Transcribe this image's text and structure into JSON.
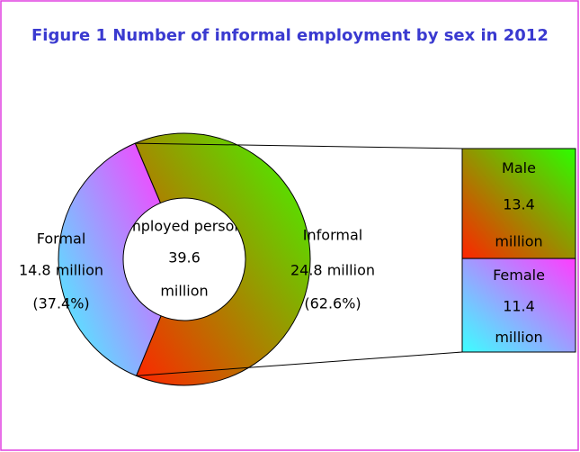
{
  "chart_data": {
    "type": "donut",
    "title": "Figure 1 Number of  informal employment by sex in 2012",
    "center_label": "Employed persons",
    "total": 39.6,
    "total_unit": "million",
    "categories": [
      "Formal",
      "Informal"
    ],
    "values": [
      14.8,
      24.8
    ],
    "value_labels": [
      "14.8 million",
      "24.8 million"
    ],
    "percents": [
      37.4,
      62.6
    ],
    "percent_labels": [
      "(37.4%)",
      "(62.6%)"
    ],
    "colors": [
      [
        "#ff3cff",
        "#3cffff"
      ],
      [
        "#3cff00",
        "#ff2400"
      ]
    ],
    "breakdown": {
      "categories": [
        "Male",
        "Female"
      ],
      "values": [
        13.4,
        11.4
      ],
      "unit": "million",
      "colors": [
        [
          "#2cff00",
          "#ff2400"
        ],
        [
          "#ff3cff",
          "#3cffff"
        ]
      ]
    }
  }
}
